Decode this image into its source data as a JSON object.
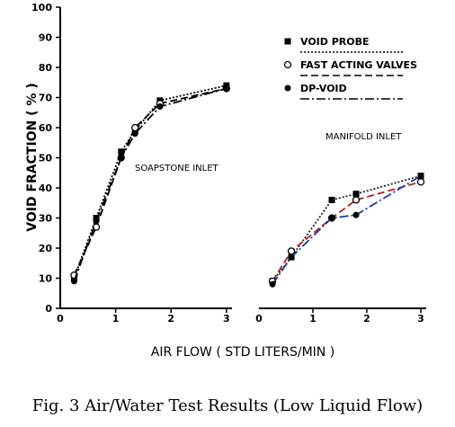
{
  "chart_data": {
    "type": "line",
    "ylabel": "VOID FRACTION ( % )",
    "xlabel": "AIR FLOW  ( STD LITERS/MIN )",
    "yticks": [
      "0",
      "10",
      "20",
      "30",
      "40",
      "50",
      "60",
      "70",
      "80",
      "90",
      "100"
    ],
    "ylim": [
      0,
      100
    ],
    "xticks": [
      "1",
      "2",
      "3"
    ],
    "xlim": [
      0,
      3.1
    ],
    "legend": [
      {
        "name": "VOID PROBE",
        "marker": "square",
        "line": "dotted"
      },
      {
        "name": "FAST ACTING VALVES",
        "marker": "circle-open",
        "line": "dashed"
      },
      {
        "name": "DP-VOID",
        "marker": "circle-filled",
        "line": "dash-dot"
      }
    ],
    "panels": [
      {
        "label": "SOAPSTONE INLET",
        "series": [
          {
            "name": "VOID PROBE",
            "x": [
              0.25,
              0.65,
              1.1,
              1.35,
              1.8,
              3.0
            ],
            "y": [
              10,
              30,
              52,
              59,
              69,
              74
            ]
          },
          {
            "name": "FAST ACTING VALVES",
            "x": [
              0.25,
              0.65,
              1.1,
              1.35,
              1.8,
              3.0
            ],
            "y": [
              11,
              27,
              50,
              60,
              68,
              73
            ]
          },
          {
            "name": "DP-VOID",
            "x": [
              0.25,
              0.65,
              1.1,
              1.35,
              1.8,
              3.0
            ],
            "y": [
              9,
              29,
              50,
              58,
              67,
              73
            ]
          }
        ]
      },
      {
        "label": "MANIFOLD INLET",
        "series": [
          {
            "name": "VOID PROBE",
            "x": [
              0.25,
              0.6,
              1.35,
              1.8,
              3.0
            ],
            "y": [
              9,
              17,
              36,
              38,
              44
            ],
            "color": "#222222"
          },
          {
            "name": "FAST ACTING VALVES",
            "x": [
              0.25,
              0.6,
              1.35,
              1.8,
              3.0
            ],
            "y": [
              9,
              19,
              30,
              36,
              42
            ],
            "color": "#aa2222"
          },
          {
            "name": "DP-VOID",
            "x": [
              0.25,
              0.6,
              1.35,
              1.8,
              3.0
            ],
            "y": [
              8,
              17,
              30,
              31,
              44
            ],
            "color": "#1a3aa8"
          }
        ]
      }
    ]
  },
  "caption": "Fig. 3   Air/Water Test Results (Low Liquid Flow)"
}
